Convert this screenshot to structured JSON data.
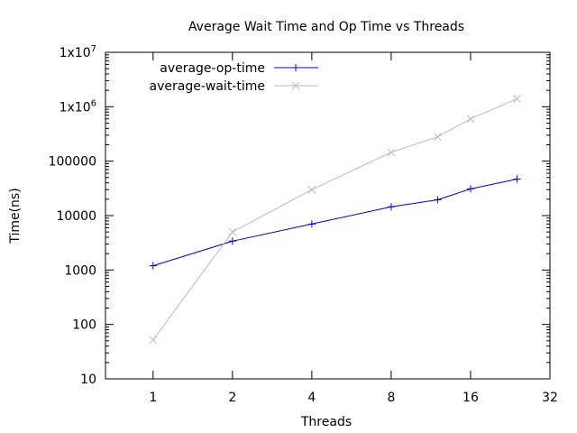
{
  "chart_data": {
    "type": "line",
    "title": "Average Wait Time and Op Time vs Threads",
    "xlabel": "Threads",
    "ylabel": "Time(ns)",
    "x_scale": "log2",
    "y_scale": "log10",
    "xlim": [
      0.66,
      32
    ],
    "ylim": [
      10,
      10000000
    ],
    "x_ticks": [
      {
        "value": 1,
        "label": "1"
      },
      {
        "value": 2,
        "label": "2"
      },
      {
        "value": 4,
        "label": "4"
      },
      {
        "value": 8,
        "label": "8"
      },
      {
        "value": 16,
        "label": "16"
      },
      {
        "value": 32,
        "label": "32"
      }
    ],
    "y_ticks": [
      {
        "value": 10,
        "label": "10"
      },
      {
        "value": 100,
        "label": "100"
      },
      {
        "value": 1000,
        "label": "1000"
      },
      {
        "value": 10000,
        "label": "10000"
      },
      {
        "value": 100000,
        "label": "100000"
      },
      {
        "value": 1000000,
        "base": "1x10",
        "exp": "6"
      },
      {
        "value": 10000000,
        "base": "1x10",
        "exp": "7"
      }
    ],
    "grid": false,
    "legend_position": "top-left",
    "series": [
      {
        "name": "average-op-time",
        "color": "#0000cc",
        "marker": "plus",
        "x": [
          1,
          2,
          4,
          8,
          12,
          16,
          24
        ],
        "y": [
          1200,
          3400,
          7000,
          14500,
          19500,
          31000,
          47000
        ]
      },
      {
        "name": "average-wait-time",
        "color": "#bbbbbb",
        "marker": "cross",
        "x": [
          1,
          2,
          4,
          8,
          12,
          16,
          24
        ],
        "y": [
          52,
          5000,
          30000,
          145000,
          280000,
          600000,
          1400000
        ]
      }
    ]
  }
}
